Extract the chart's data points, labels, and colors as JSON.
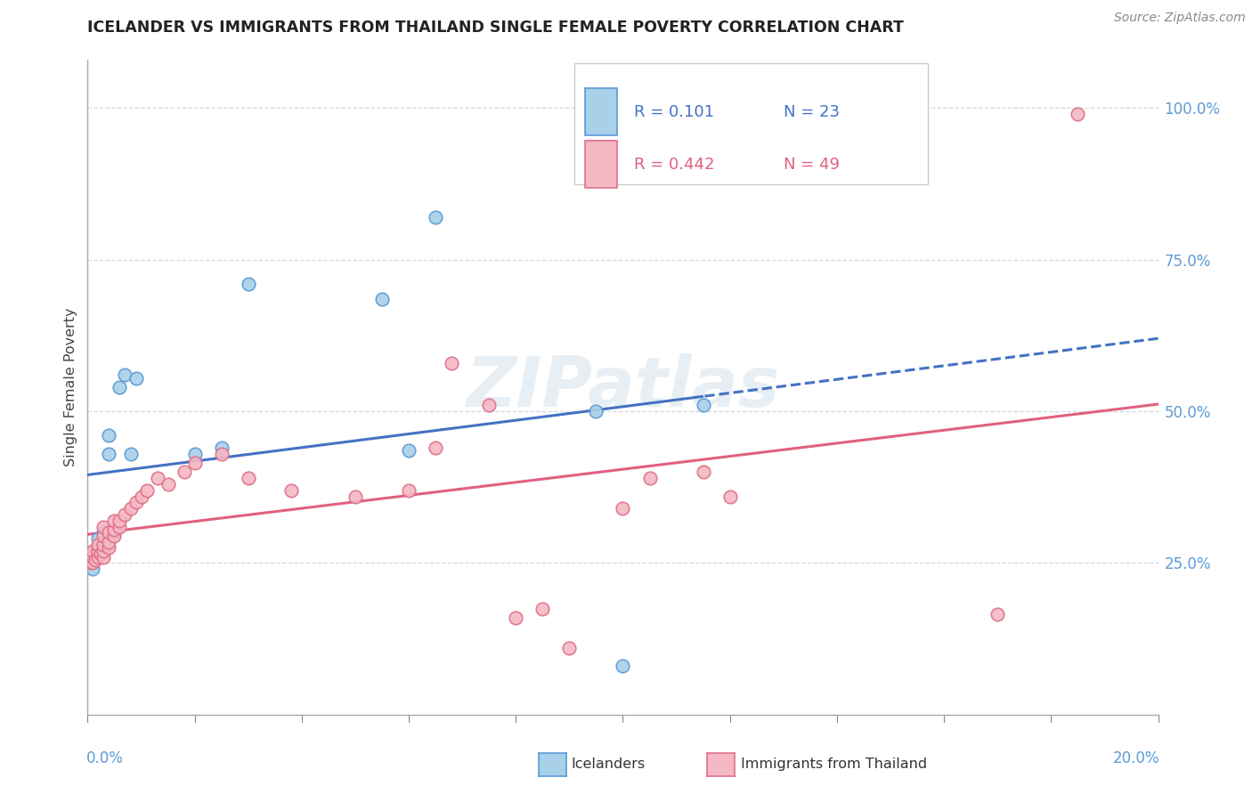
{
  "title": "ICELANDER VS IMMIGRANTS FROM THAILAND SINGLE FEMALE POVERTY CORRELATION CHART",
  "source": "Source: ZipAtlas.com",
  "ylabel": "Single Female Poverty",
  "ytick_labels": [
    "100.0%",
    "75.0%",
    "50.0%",
    "25.0%"
  ],
  "ytick_vals": [
    1.0,
    0.75,
    0.5,
    0.25
  ],
  "xtick_left": "0.0%",
  "xtick_right": "20.0%",
  "xmin": 0.0,
  "xmax": 0.2,
  "ymin": 0.0,
  "ymax": 1.08,
  "legend_r1": "R = 0.101",
  "legend_n1": "N = 23",
  "legend_r2": "R = 0.442",
  "legend_n2": "N = 49",
  "color_icel_fill": "#a8d0e8",
  "color_icel_edge": "#5b9bd5",
  "color_thai_fill": "#f4b8c4",
  "color_thai_edge": "#e0708a",
  "color_line_icel": "#4472c4",
  "color_line_thai": "#e06080",
  "watermark": "ZIPatlas",
  "icel_x": [
    0.0005,
    0.001,
    0.001,
    0.002,
    0.002,
    0.003,
    0.003,
    0.004,
    0.004,
    0.005,
    0.006,
    0.007,
    0.008,
    0.009,
    0.02,
    0.025,
    0.03,
    0.055,
    0.06,
    0.065,
    0.095,
    0.1,
    0.115
  ],
  "icel_y": [
    0.26,
    0.24,
    0.265,
    0.27,
    0.29,
    0.28,
    0.3,
    0.43,
    0.46,
    0.3,
    0.54,
    0.56,
    0.43,
    0.555,
    0.43,
    0.44,
    0.71,
    0.685,
    0.435,
    0.82,
    0.5,
    0.08,
    0.51
  ],
  "thai_x": [
    0.0003,
    0.0005,
    0.001,
    0.001,
    0.001,
    0.0015,
    0.002,
    0.002,
    0.002,
    0.0025,
    0.003,
    0.003,
    0.003,
    0.003,
    0.003,
    0.004,
    0.004,
    0.004,
    0.005,
    0.005,
    0.005,
    0.006,
    0.006,
    0.007,
    0.008,
    0.009,
    0.01,
    0.011,
    0.013,
    0.015,
    0.018,
    0.02,
    0.025,
    0.03,
    0.038,
    0.05,
    0.06,
    0.065,
    0.068,
    0.075,
    0.08,
    0.085,
    0.09,
    0.1,
    0.105,
    0.115,
    0.12,
    0.17,
    0.185
  ],
  "thai_y": [
    0.25,
    0.26,
    0.25,
    0.26,
    0.27,
    0.255,
    0.26,
    0.27,
    0.28,
    0.265,
    0.26,
    0.27,
    0.28,
    0.295,
    0.31,
    0.275,
    0.285,
    0.3,
    0.295,
    0.305,
    0.32,
    0.31,
    0.32,
    0.33,
    0.34,
    0.35,
    0.36,
    0.37,
    0.39,
    0.38,
    0.4,
    0.415,
    0.43,
    0.39,
    0.37,
    0.36,
    0.37,
    0.44,
    0.58,
    0.51,
    0.16,
    0.175,
    0.11,
    0.34,
    0.39,
    0.4,
    0.36,
    0.165,
    0.99
  ]
}
